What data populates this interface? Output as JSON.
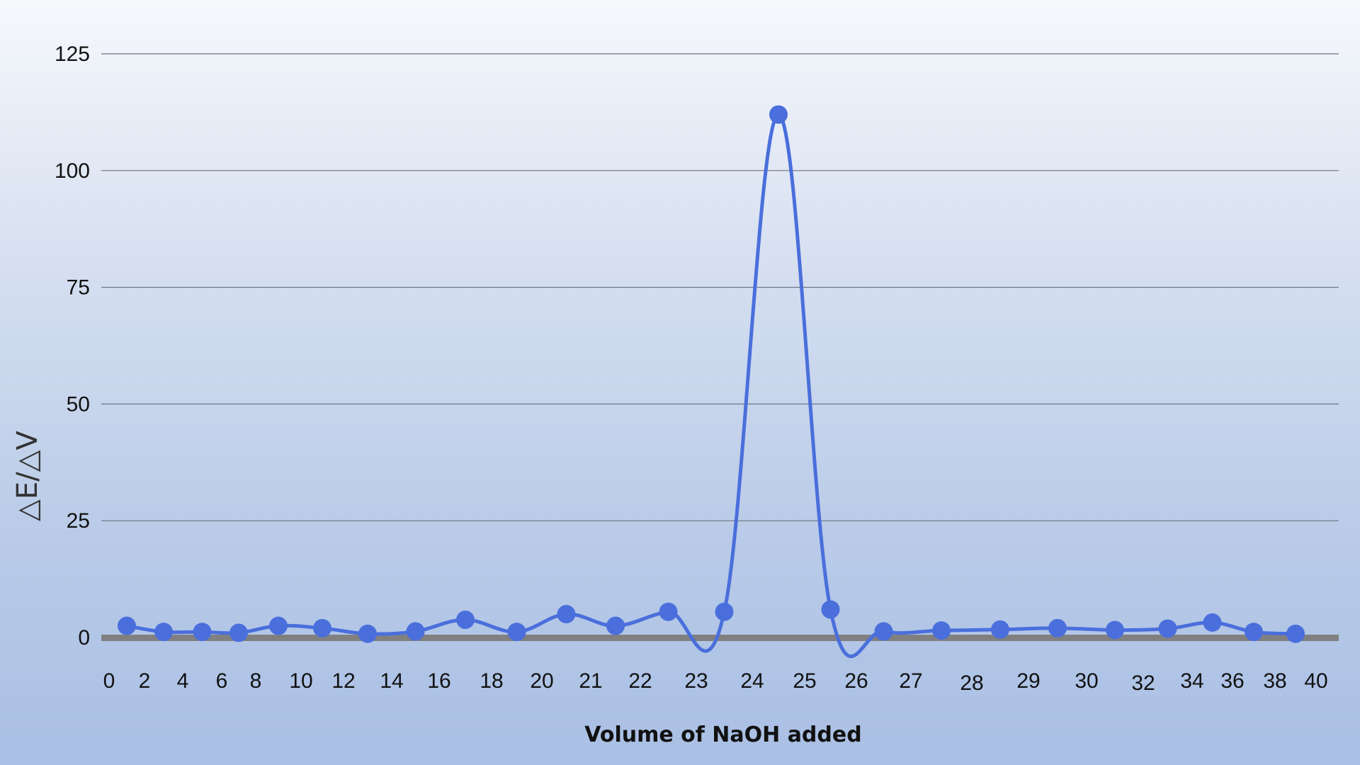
{
  "chart_data": {
    "type": "line",
    "title": "",
    "xlabel": "Volume of NaOH added",
    "ylabel": "△E/△V",
    "ylim": [
      0,
      125
    ],
    "yticks": [
      0,
      25,
      50,
      75,
      100,
      125
    ],
    "grid": true,
    "smooth": true,
    "markers": true,
    "x_tick_labels": [
      "0",
      "2",
      "4",
      "6",
      "8",
      "10",
      "12",
      "14",
      "16",
      "18",
      "20",
      "21",
      "22",
      "23",
      "24",
      "25",
      "26",
      "27",
      "28",
      "29",
      "30",
      "32",
      "34",
      "36",
      "38",
      "40"
    ],
    "series": [
      {
        "color": "#4a6fdc",
        "points": [
          {
            "x": 1,
            "y": 2.5
          },
          {
            "x": 3,
            "y": 1.2
          },
          {
            "x": 5,
            "y": 1.2
          },
          {
            "x": 7,
            "y": 1.0
          },
          {
            "x": 9,
            "y": 2.5
          },
          {
            "x": 11,
            "y": 2.0
          },
          {
            "x": 13,
            "y": 0.8
          },
          {
            "x": 15,
            "y": 1.3
          },
          {
            "x": 17,
            "y": 3.8
          },
          {
            "x": 19,
            "y": 1.2
          },
          {
            "x": 20.5,
            "y": 5.0
          },
          {
            "x": 21.5,
            "y": 2.5
          },
          {
            "x": 22.5,
            "y": 5.5
          },
          {
            "x": 23.5,
            "y": 5.5
          },
          {
            "x": 24.5,
            "y": 112
          },
          {
            "x": 25.5,
            "y": 6.0
          },
          {
            "x": 26.5,
            "y": 1.3
          },
          {
            "x": 27.5,
            "y": 1.5
          },
          {
            "x": 28.5,
            "y": 1.7
          },
          {
            "x": 29.5,
            "y": 2.0
          },
          {
            "x": 31,
            "y": 1.6
          },
          {
            "x": 33,
            "y": 1.9
          },
          {
            "x": 35,
            "y": 3.2
          },
          {
            "x": 37,
            "y": 1.2
          },
          {
            "x": 39,
            "y": 0.8
          }
        ]
      }
    ],
    "colors": {
      "line": "#4a6fdc",
      "gridline": "#6e7480",
      "baseline": "#808080"
    }
  }
}
